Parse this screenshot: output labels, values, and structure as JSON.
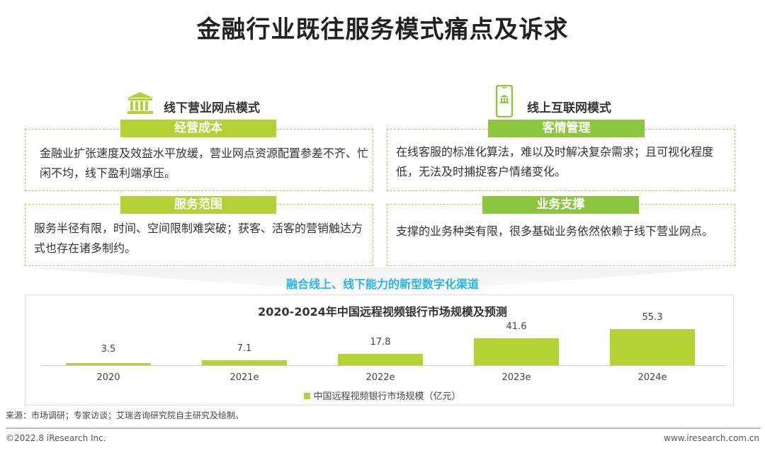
{
  "title": "金融行业既往服务模式痛点及诉求",
  "offline": {
    "heading": "线下营业网点模式",
    "icon": "bank-icon",
    "items": [
      {
        "label": "经营成本",
        "text": "金融业扩张速度及效益水平放缓，营业网点资源配置参差不齐、忙闲不均，线下盈利端承压。"
      },
      {
        "label": "服务范围",
        "text": "服务半径有限，时间、空间限制难突破；获客、活客的营销触达方式也存在诸多制约。"
      }
    ]
  },
  "online": {
    "heading": "线上互联网模式",
    "icon": "mobile-bank-icon",
    "items": [
      {
        "label": "客情管理",
        "text": "在线客服的标准化算法，难以及时解决复杂需求；且可视化程度低，无法及时捕捉客户情绪变化。"
      },
      {
        "label": "业务支撑",
        "text": "支撑的业务种类有限，很多基础业务依然依赖于线下营业网点。"
      }
    ]
  },
  "fusion": "融合线上、线下能力的新型数字化渠道",
  "chart_data": {
    "type": "bar",
    "title": "2020-2024年中国远程视频银行市场规模及预测",
    "categories": [
      "2020",
      "2021e",
      "2022e",
      "2023e",
      "2024e"
    ],
    "series": [
      {
        "name": "中国远程视频银行市场规模（亿元）",
        "values": [
          3.5,
          7.1,
          17.8,
          41.6,
          55.3
        ]
      }
    ],
    "value_labels": [
      "3.5",
      "7.1",
      "17.8",
      "41.6",
      "55.3"
    ],
    "color": "#b2d235",
    "legend": "bottom",
    "grid": false
  },
  "source": "来源：市场调研；专家访谈；艾瑞咨询研究院自主研究及绘制。",
  "footer": {
    "copyright": "©2022.8 iResearch Inc.",
    "site": "www.iresearch.com.cn"
  }
}
